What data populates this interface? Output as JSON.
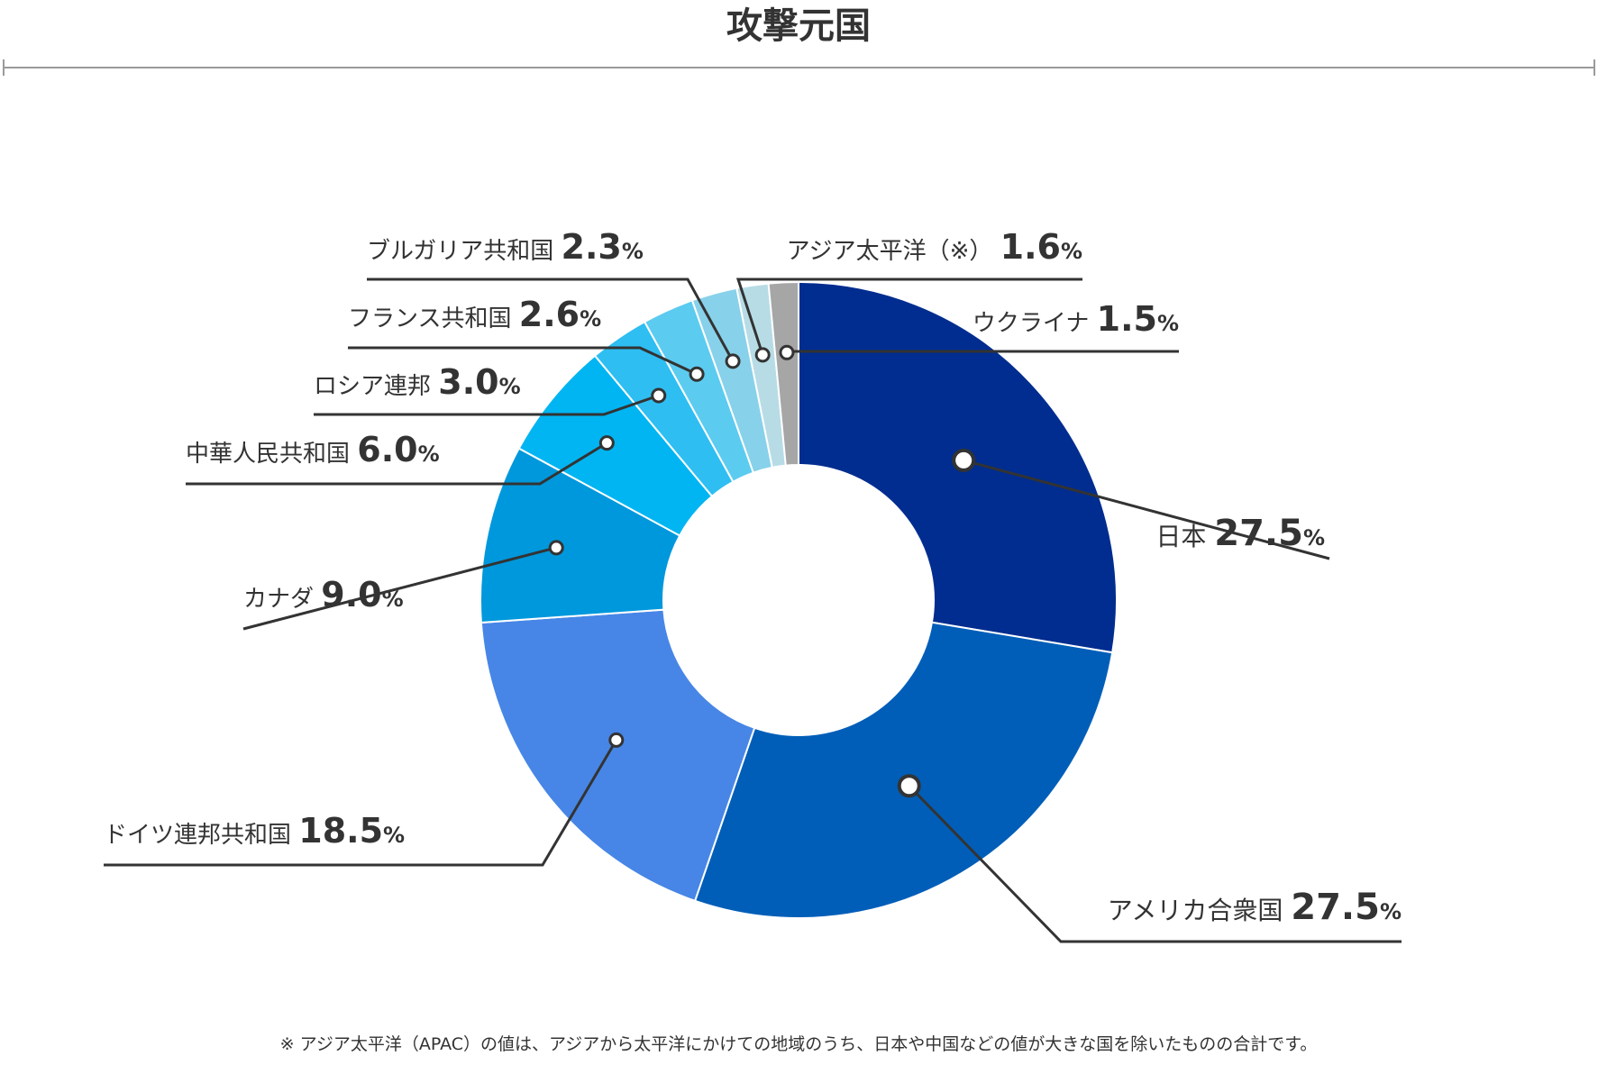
{
  "chart_data": {
    "type": "pie",
    "variant": "donut",
    "title": "攻撃元国",
    "unit": "%",
    "slices": [
      {
        "label": "日本",
        "value": 27.5,
        "display": "27.5",
        "color": "#002d8f"
      },
      {
        "label": "アメリカ合衆国",
        "value": 27.5,
        "display": "27.5",
        "color": "#005eb8"
      },
      {
        "label": "ドイツ連邦共和国",
        "value": 18.5,
        "display": "18.5",
        "color": "#4786e6"
      },
      {
        "label": "カナダ",
        "value": 9.0,
        "display": "9.0",
        "color": "#0098dc"
      },
      {
        "label": "中華人民共和国",
        "value": 6.0,
        "display": "6.0",
        "color": "#00b5f1"
      },
      {
        "label": "ロシア連邦",
        "value": 3.0,
        "display": "3.0",
        "color": "#2ebef2"
      },
      {
        "label": "フランス共和国",
        "value": 2.6,
        "display": "2.6",
        "color": "#5ccbf0"
      },
      {
        "label": "ブルガリア共和国",
        "value": 2.3,
        "display": "2.3",
        "color": "#88d1ea"
      },
      {
        "label": "アジア太平洋（※）",
        "value": 1.6,
        "display": "1.6",
        "color": "#b7dce6"
      },
      {
        "label": "ウクライナ",
        "value": 1.5,
        "display": "1.5",
        "color": "#a6a6a6"
      }
    ],
    "footnote": "※ アジア太平洋（APAC）の値は、アジアから太平洋にかけての地域のうち、日本や中国などの値が大きな国を除いたものの合計です。"
  }
}
